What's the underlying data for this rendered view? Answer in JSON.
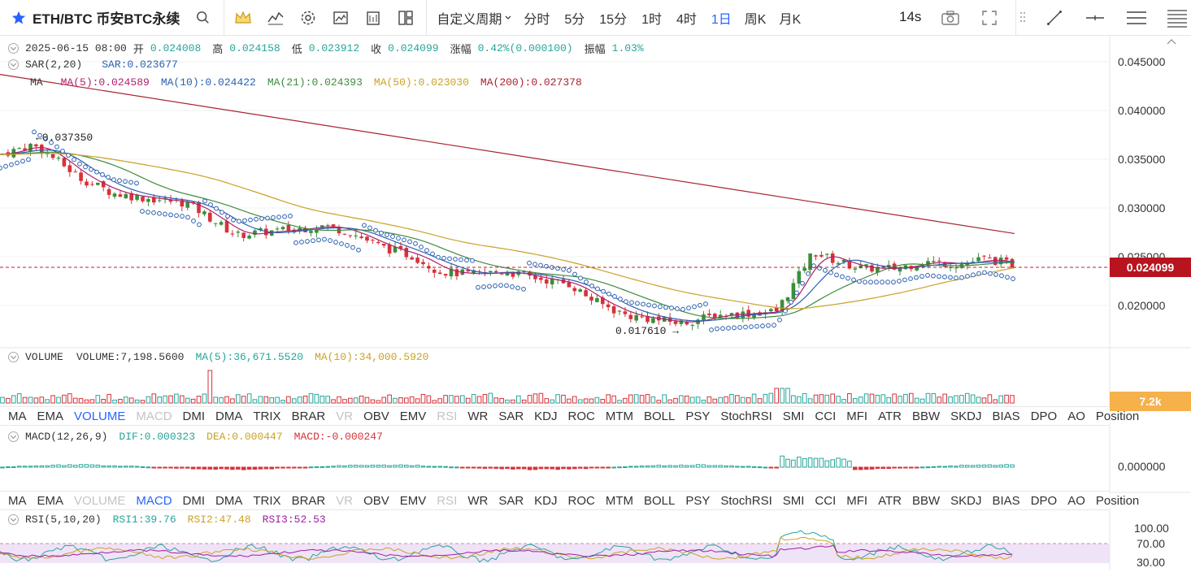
{
  "header": {
    "symbol": "ETH/BTC 币安BTC永续",
    "period_dropdown": "自定义周期",
    "periods": [
      "分时",
      "5分",
      "15分",
      "1时",
      "4时",
      "1日",
      "周K",
      "月K"
    ],
    "active_period": "1日",
    "countdown": "14s"
  },
  "ohlc": {
    "date": "2025-06-15 08:00",
    "open_label": "开",
    "open": "0.024008",
    "high_label": "高",
    "high": "0.024158",
    "low_label": "低",
    "low": "0.023912",
    "close_label": "收",
    "close": "0.024099",
    "change_label": "涨幅",
    "change": "0.42%(0.000100)",
    "amp_label": "振幅",
    "amp": "1.03%"
  },
  "sar_legend": {
    "name": "SAR(2,20)",
    "value": "SAR:0.023677"
  },
  "ma_legend": {
    "name": "MA",
    "ma5": "MA(5):0.024589",
    "ma10": "MA(10):0.024422",
    "ma21": "MA(21):0.024393",
    "ma50": "MA(50):0.023030",
    "ma200": "MA(200):0.027378"
  },
  "price_axis": {
    "labels": [
      "0.045000",
      "0.040000",
      "0.035000",
      "0.030000",
      "0.025000",
      "0.020000"
    ],
    "current_price": "0.024099"
  },
  "annotations": {
    "high": "←0.037350",
    "low": "0.017610 →"
  },
  "volume_legend": {
    "name": "VOLUME",
    "value": "VOLUME:7,198.5600",
    "ma5": "MA(5):36,671.5520",
    "ma10": "MA(10):34,000.5920",
    "tag": "7.2k"
  },
  "indicator_tabs": [
    "MA",
    "EMA",
    "VOLUME",
    "MACD",
    "DMI",
    "DMA",
    "TRIX",
    "BRAR",
    "VR",
    "OBV",
    "EMV",
    "RSI",
    "WR",
    "SAR",
    "KDJ",
    "ROC",
    "MTM",
    "BOLL",
    "PSY",
    "StochRSI",
    "SMI",
    "CCI",
    "MFI",
    "ATR",
    "BBW",
    "SKDJ",
    "BIAS",
    "DPO",
    "AO",
    "Position"
  ],
  "macd_legend": {
    "name": "MACD(12,26,9)",
    "dif": "DIF:0.000323",
    "dea": "DEA:0.000447",
    "macd": "MACD:-0.000247",
    "axis": "0.000000"
  },
  "rsi_legend": {
    "name": "RSI(5,10,20)",
    "rsi1": "RSI1:39.76",
    "rsi2": "RSI2:47.48",
    "rsi3": "RSI3:52.53",
    "axis": [
      "100.00",
      "70.00",
      "30.00"
    ]
  },
  "colors": {
    "up": "#26a69a",
    "up_candle": "#3a8f3a",
    "down": "#d6323a",
    "accent": "#2962ff",
    "ma5": "#b01f6b",
    "ma10": "#2a5fb0",
    "ma21": "#3f8a3f",
    "ma50": "#c9a227",
    "ma200": "#a8232f",
    "sar": "#2a5fb0"
  }
}
